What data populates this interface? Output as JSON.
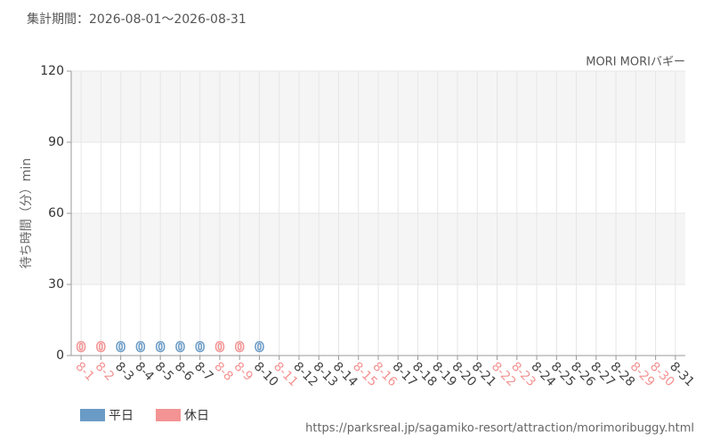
{
  "chart_data": {
    "type": "bar",
    "title": "集計期間：2026-08-01～2026-08-31",
    "subtitle": "MORI MORIバギー",
    "y_label": "待ち時間（分）min",
    "source": "https://parksreal.jp/sagamiko-resort/attraction/morimoribuggy.html",
    "categories": [
      "8-1",
      "8-2",
      "8-3",
      "8-4",
      "8-5",
      "8-6",
      "8-7",
      "8-8",
      "8-9",
      "8-10",
      "8-11",
      "8-12",
      "8-13",
      "8-14",
      "8-15",
      "8-16",
      "8-17",
      "8-18",
      "8-19",
      "8-20",
      "8-21",
      "8-22",
      "8-23",
      "8-24",
      "8-25",
      "8-26",
      "8-27",
      "8-28",
      "8-29",
      "8-30",
      "8-31"
    ],
    "category_colors": [
      "#f49393",
      "#f49393",
      "#444444",
      "#444444",
      "#444444",
      "#444444",
      "#444444",
      "#f49393",
      "#f49393",
      "#444444",
      "#f49393",
      "#444444",
      "#444444",
      "#444444",
      "#f49393",
      "#f49393",
      "#444444",
      "#444444",
      "#444444",
      "#444444",
      "#444444",
      "#f49393",
      "#f49393",
      "#444444",
      "#444444",
      "#444444",
      "#444444",
      "#444444",
      "#f49393",
      "#f49393",
      "#444444"
    ],
    "series": [
      {
        "name": "平日",
        "color": "#6a9bc6",
        "values": [
          null,
          null,
          0,
          0,
          0,
          0,
          0,
          null,
          null,
          0,
          null,
          null,
          null,
          null,
          null,
          null,
          null,
          null,
          null,
          null,
          null,
          null,
          null,
          null,
          null,
          null,
          null,
          null,
          null,
          null,
          null
        ]
      },
      {
        "name": "休日",
        "color": "#f49393",
        "values": [
          0,
          0,
          null,
          null,
          null,
          null,
          null,
          0,
          0,
          null,
          null,
          null,
          null,
          null,
          null,
          null,
          null,
          null,
          null,
          null,
          null,
          null,
          null,
          null,
          null,
          null,
          null,
          null,
          null,
          null,
          null
        ]
      }
    ],
    "ylim": [
      0,
      120
    ],
    "yticks": [
      0,
      30,
      60,
      90,
      120
    ],
    "grid": true
  }
}
